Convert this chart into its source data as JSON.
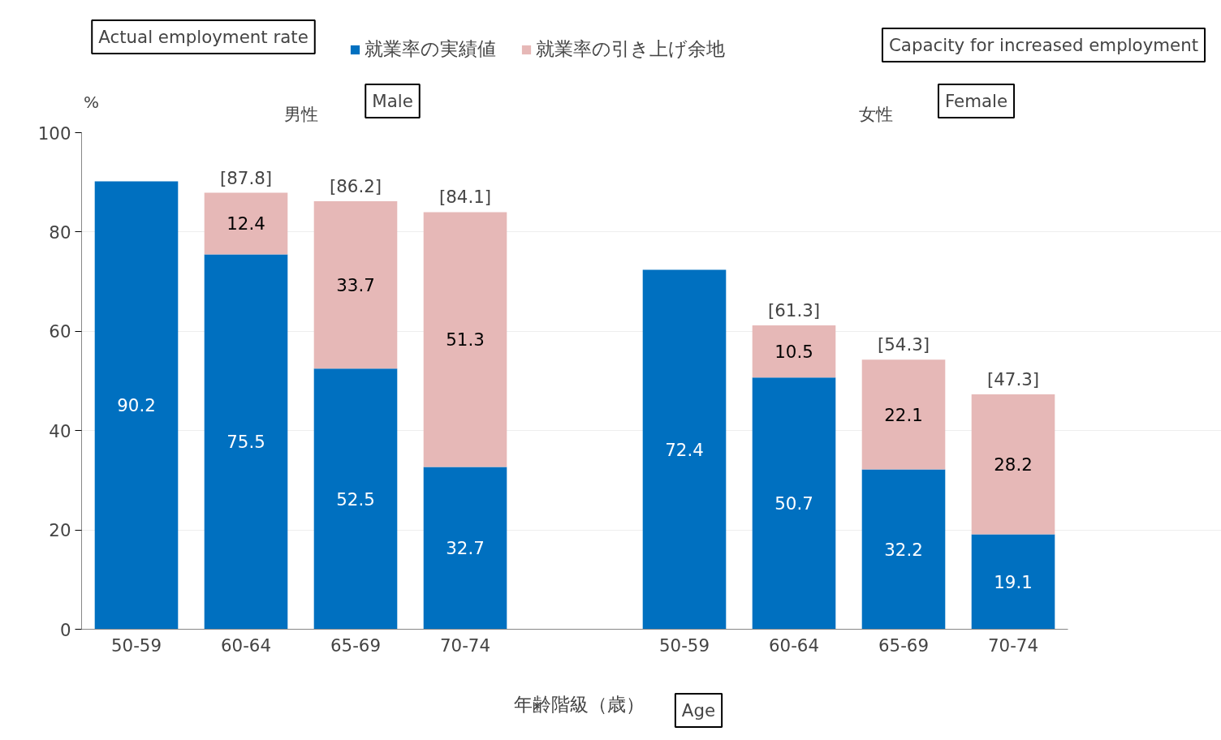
{
  "chart_data": {
    "type": "bar",
    "stacked": true,
    "categories": [
      "50-59",
      "60-64",
      "65-69",
      "70-74",
      null,
      "50-59",
      "60-64",
      "65-69",
      "70-74"
    ],
    "series": [
      {
        "name": "就業率の実績値",
        "color": "#0070c0",
        "values": [
          90.2,
          75.5,
          52.5,
          32.7,
          null,
          72.4,
          50.7,
          32.2,
          19.1
        ]
      },
      {
        "name": "就業率の引き上げ余地",
        "color": "#e6b8b7",
        "values": [
          null,
          12.4,
          33.7,
          51.3,
          null,
          null,
          10.5,
          22.1,
          28.2
        ]
      }
    ],
    "totals": [
      null,
      "[87.8]",
      "[86.2]",
      "[84.1]",
      null,
      null,
      "[61.3]",
      "[54.3]",
      "[47.3]"
    ],
    "data_labels": true,
    "ylabel": "%",
    "xlabel": "年齢階級（歳）",
    "ylim": [
      0,
      100
    ],
    "yticks": [
      0,
      20,
      40,
      60,
      80,
      100
    ],
    "grid": "y",
    "legend": "top",
    "annotations": [
      "Actual employment rate",
      "Capacity for increased employment",
      "男性",
      "Male",
      "女性",
      "Female",
      "Age"
    ]
  }
}
